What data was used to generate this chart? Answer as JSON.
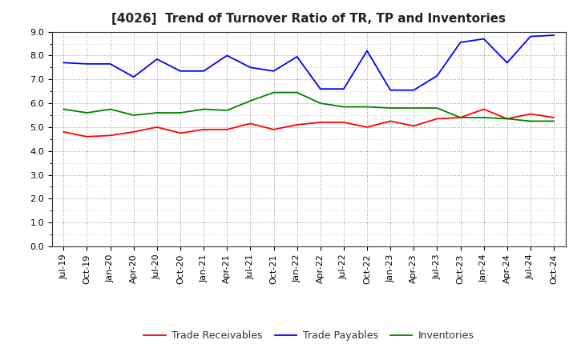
{
  "title": "[4026]  Trend of Turnover Ratio of TR, TP and Inventories",
  "x_labels": [
    "Jul-19",
    "Oct-19",
    "Jan-20",
    "Apr-20",
    "Jul-20",
    "Oct-20",
    "Jan-21",
    "Apr-21",
    "Jul-21",
    "Oct-21",
    "Jan-22",
    "Apr-22",
    "Jul-22",
    "Oct-22",
    "Jan-23",
    "Apr-23",
    "Jul-23",
    "Oct-23",
    "Jan-24",
    "Apr-24",
    "Jul-24",
    "Oct-24"
  ],
  "trade_receivables": [
    4.8,
    4.6,
    4.65,
    4.8,
    5.0,
    4.75,
    4.9,
    4.9,
    5.15,
    4.9,
    5.1,
    5.2,
    5.2,
    5.0,
    5.25,
    5.05,
    5.35,
    5.4,
    5.75,
    5.35,
    5.55,
    5.4
  ],
  "trade_payables": [
    7.7,
    7.65,
    7.65,
    7.1,
    7.85,
    7.35,
    7.35,
    8.0,
    7.5,
    7.35,
    7.95,
    6.6,
    6.6,
    8.2,
    6.55,
    6.55,
    7.15,
    8.55,
    8.7,
    7.7,
    8.8,
    8.85
  ],
  "inventories": [
    5.75,
    5.6,
    5.75,
    5.5,
    5.6,
    5.6,
    5.75,
    5.7,
    6.1,
    6.45,
    6.45,
    6.0,
    5.85,
    5.85,
    5.8,
    5.8,
    5.8,
    5.4,
    5.4,
    5.35,
    5.25,
    5.25
  ],
  "tr_color": "#ff0000",
  "tp_color": "#0000ff",
  "inv_color": "#008000",
  "ylim": [
    0.0,
    9.0
  ],
  "yticks": [
    0.0,
    1.0,
    2.0,
    3.0,
    4.0,
    5.0,
    6.0,
    7.0,
    8.0,
    9.0
  ],
  "legend_labels": [
    "Trade Receivables",
    "Trade Payables",
    "Inventories"
  ],
  "bg_color": "#ffffff",
  "grid_color": "#aaaaaa",
  "title_fontsize": 11,
  "tick_fontsize": 8,
  "legend_fontsize": 9
}
